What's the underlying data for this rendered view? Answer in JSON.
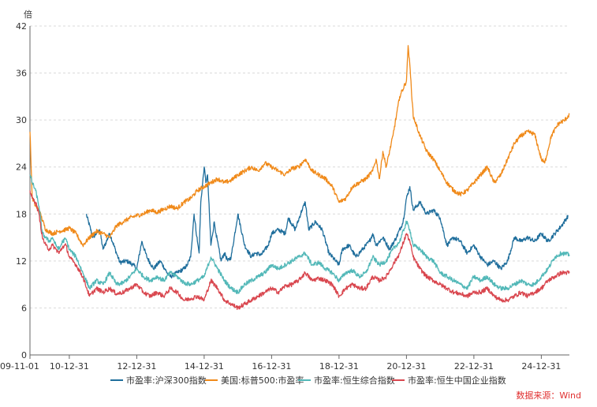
{
  "chart_data": {
    "type": "line",
    "unit_label": "倍",
    "source": "数据来源：Wind",
    "ylim": [
      0,
      42
    ],
    "yticks": [
      0,
      6,
      12,
      18,
      24,
      30,
      36,
      42
    ],
    "xlim": [
      2009.833,
      2025.833
    ],
    "xticks": [
      {
        "label": "09-11-01",
        "x": 2009.833
      },
      {
        "label": "10-12-31",
        "x": 2011.0
      },
      {
        "label": "12-12-31",
        "x": 2013.0
      },
      {
        "label": "14-12-31",
        "x": 2015.0
      },
      {
        "label": "16-12-31",
        "x": 2017.0
      },
      {
        "label": "18-12-31",
        "x": 2019.0
      },
      {
        "label": "20-12-31",
        "x": 2021.0
      },
      {
        "label": "22-12-31",
        "x": 2023.0
      },
      {
        "label": "24-12-31",
        "x": 2025.0
      }
    ],
    "grid": true,
    "series": [
      {
        "name": "市盈率:沪深300指数",
        "color": "#1f6e9c",
        "x": [
          2011.5,
          2011.7,
          2011.9,
          2012.0,
          2012.2,
          2012.4,
          2012.5,
          2012.7,
          2012.9,
          2013.0,
          2013.15,
          2013.3,
          2013.5,
          2013.7,
          2013.9,
          2014.0,
          2014.2,
          2014.4,
          2014.5,
          2014.6,
          2014.7,
          2014.8,
          2014.85,
          2014.9,
          2015.0,
          2015.05,
          2015.1,
          2015.2,
          2015.3,
          2015.35,
          2015.5,
          2015.6,
          2015.7,
          2015.8,
          2016.0,
          2016.2,
          2016.4,
          2016.5,
          2016.7,
          2016.9,
          2017.0,
          2017.2,
          2017.4,
          2017.5,
          2017.7,
          2017.9,
          2018.0,
          2018.1,
          2018.3,
          2018.5,
          2018.7,
          2018.9,
          2019.0,
          2019.1,
          2019.3,
          2019.5,
          2019.7,
          2019.9,
          2020.0,
          2020.1,
          2020.3,
          2020.5,
          2020.7,
          2020.9,
          2021.0,
          2021.1,
          2021.2,
          2021.4,
          2021.6,
          2021.8,
          2022.0,
          2022.2,
          2022.4,
          2022.6,
          2022.8,
          2023.0,
          2023.2,
          2023.4,
          2023.6,
          2023.8,
          2024.0,
          2024.2,
          2024.4,
          2024.6,
          2024.8,
          2025.0,
          2025.2,
          2025.4,
          2025.6,
          2025.8
        ],
        "y": [
          18.0,
          15.0,
          16.0,
          13.5,
          15.5,
          13.0,
          11.8,
          12.0,
          11.5,
          11.0,
          14.5,
          12.5,
          11.0,
          12.0,
          10.5,
          10.0,
          10.5,
          11.0,
          11.5,
          12.5,
          18.0,
          14.5,
          13.0,
          19.5,
          24.0,
          22.0,
          23.0,
          14.0,
          17.0,
          15.5,
          12.0,
          13.0,
          12.0,
          12.5,
          18.0,
          14.0,
          12.5,
          13.0,
          12.8,
          14.0,
          15.5,
          16.0,
          15.5,
          17.5,
          16.0,
          18.5,
          19.5,
          16.0,
          17.0,
          16.0,
          13.0,
          12.0,
          11.5,
          13.5,
          14.0,
          12.5,
          13.5,
          14.5,
          15.5,
          14.0,
          15.0,
          13.5,
          15.0,
          17.0,
          20.0,
          21.5,
          18.5,
          19.5,
          18.0,
          18.5,
          17.5,
          14.0,
          15.0,
          14.5,
          13.0,
          14.0,
          12.5,
          11.5,
          12.0,
          11.0,
          12.0,
          15.0,
          14.5,
          15.0,
          14.5,
          15.5,
          14.5,
          15.5,
          16.5,
          17.8
        ]
      },
      {
        "name": "美国:标普500:市盈率",
        "color": "#f08a1a",
        "x": [
          2009.833,
          2009.9,
          2010.0,
          2010.1,
          2010.3,
          2010.5,
          2010.7,
          2010.9,
          2011.0,
          2011.2,
          2011.4,
          2011.6,
          2011.8,
          2012.0,
          2012.2,
          2012.4,
          2012.6,
          2012.8,
          2013.0,
          2013.2,
          2013.4,
          2013.6,
          2013.8,
          2014.0,
          2014.2,
          2014.4,
          2014.6,
          2014.8,
          2015.0,
          2015.2,
          2015.4,
          2015.6,
          2015.8,
          2016.0,
          2016.2,
          2016.4,
          2016.6,
          2016.8,
          2017.0,
          2017.2,
          2017.4,
          2017.6,
          2017.8,
          2018.0,
          2018.2,
          2018.4,
          2018.6,
          2018.8,
          2019.0,
          2019.2,
          2019.4,
          2019.6,
          2019.8,
          2020.0,
          2020.1,
          2020.2,
          2020.3,
          2020.4,
          2020.6,
          2020.8,
          2021.0,
          2021.05,
          2021.1,
          2021.2,
          2021.4,
          2021.6,
          2021.8,
          2022.0,
          2022.2,
          2022.4,
          2022.6,
          2022.8,
          2023.0,
          2023.2,
          2023.4,
          2023.6,
          2023.8,
          2024.0,
          2024.2,
          2024.4,
          2024.6,
          2024.8,
          2025.0,
          2025.1,
          2025.3,
          2025.5,
          2025.7,
          2025.833
        ],
        "y": [
          28.5,
          20.0,
          19.0,
          18.5,
          16.0,
          15.5,
          15.8,
          16.0,
          16.2,
          15.5,
          14.0,
          15.0,
          15.8,
          15.5,
          15.0,
          16.5,
          17.0,
          17.5,
          17.8,
          18.0,
          18.5,
          18.2,
          18.6,
          19.0,
          18.7,
          19.5,
          20.0,
          21.0,
          21.5,
          22.0,
          22.5,
          22.0,
          22.3,
          23.0,
          23.5,
          24.0,
          23.5,
          24.5,
          24.0,
          23.5,
          23.0,
          23.8,
          24.0,
          25.0,
          23.5,
          23.0,
          22.5,
          21.5,
          19.5,
          20.0,
          21.5,
          22.0,
          22.5,
          23.5,
          25.0,
          22.5,
          26.0,
          24.0,
          28.0,
          33.0,
          35.0,
          39.5,
          37.0,
          30.5,
          28.0,
          26.0,
          25.0,
          23.5,
          22.0,
          21.0,
          20.5,
          21.0,
          22.0,
          23.0,
          24.0,
          22.0,
          23.0,
          25.0,
          27.0,
          28.0,
          28.5,
          28.2,
          25.0,
          24.5,
          28.0,
          29.5,
          30.0,
          30.7
        ]
      },
      {
        "name": "市盈率:恒生综合指数",
        "color": "#52b8b8",
        "x": [
          2009.833,
          2009.9,
          2010.0,
          2010.1,
          2010.2,
          2010.3,
          2010.4,
          2010.5,
          2010.6,
          2010.7,
          2010.8,
          2010.9,
          2011.0,
          2011.2,
          2011.4,
          2011.6,
          2011.8,
          2012.0,
          2012.2,
          2012.4,
          2012.6,
          2012.8,
          2013.0,
          2013.2,
          2013.4,
          2013.6,
          2013.8,
          2014.0,
          2014.2,
          2014.4,
          2014.6,
          2014.8,
          2015.0,
          2015.2,
          2015.4,
          2015.6,
          2015.8,
          2016.0,
          2016.2,
          2016.4,
          2016.6,
          2016.8,
          2017.0,
          2017.2,
          2017.4,
          2017.6,
          2017.8,
          2018.0,
          2018.2,
          2018.4,
          2018.6,
          2018.8,
          2019.0,
          2019.2,
          2019.4,
          2019.6,
          2019.8,
          2020.0,
          2020.2,
          2020.4,
          2020.6,
          2020.8,
          2021.0,
          2021.1,
          2021.2,
          2021.4,
          2021.6,
          2021.8,
          2022.0,
          2022.2,
          2022.4,
          2022.6,
          2022.8,
          2023.0,
          2023.2,
          2023.4,
          2023.6,
          2023.8,
          2024.0,
          2024.2,
          2024.4,
          2024.6,
          2024.8,
          2025.0,
          2025.2,
          2025.4,
          2025.6,
          2025.833
        ],
        "y": [
          23.0,
          22.0,
          21.0,
          19.0,
          15.5,
          15.0,
          14.5,
          15.0,
          14.0,
          13.5,
          14.5,
          14.8,
          13.5,
          12.5,
          10.5,
          8.5,
          9.5,
          9.0,
          10.5,
          9.0,
          9.2,
          10.0,
          11.0,
          10.0,
          9.5,
          10.0,
          9.5,
          10.5,
          10.0,
          9.2,
          9.0,
          9.5,
          10.0,
          12.5,
          11.0,
          9.5,
          8.5,
          8.0,
          9.0,
          9.5,
          10.0,
          10.5,
          11.5,
          11.0,
          11.5,
          12.0,
          12.5,
          13.0,
          11.5,
          11.8,
          11.0,
          10.5,
          9.5,
          10.5,
          10.8,
          10.0,
          10.5,
          12.5,
          11.5,
          12.0,
          13.5,
          14.5,
          17.0,
          16.0,
          14.0,
          13.5,
          12.5,
          12.0,
          10.5,
          10.0,
          9.5,
          9.0,
          8.5,
          10.0,
          9.5,
          10.0,
          9.0,
          8.5,
          8.5,
          9.0,
          9.5,
          9.0,
          9.0,
          10.0,
          11.0,
          12.5,
          13.0,
          12.8
        ]
      },
      {
        "name": "市盈率:恒生中国企业指数",
        "color": "#d9474f",
        "x": [
          2009.833,
          2009.9,
          2010.0,
          2010.1,
          2010.2,
          2010.3,
          2010.4,
          2010.5,
          2010.6,
          2010.7,
          2010.8,
          2010.9,
          2011.0,
          2011.2,
          2011.4,
          2011.6,
          2011.8,
          2012.0,
          2012.2,
          2012.4,
          2012.6,
          2012.8,
          2013.0,
          2013.2,
          2013.4,
          2013.6,
          2013.8,
          2014.0,
          2014.2,
          2014.4,
          2014.6,
          2014.8,
          2015.0,
          2015.2,
          2015.4,
          2015.6,
          2015.8,
          2016.0,
          2016.2,
          2016.4,
          2016.6,
          2016.8,
          2017.0,
          2017.2,
          2017.4,
          2017.6,
          2017.8,
          2018.0,
          2018.2,
          2018.4,
          2018.6,
          2018.8,
          2019.0,
          2019.2,
          2019.4,
          2019.6,
          2019.8,
          2020.0,
          2020.2,
          2020.4,
          2020.6,
          2020.8,
          2021.0,
          2021.1,
          2021.2,
          2021.4,
          2021.6,
          2021.8,
          2022.0,
          2022.2,
          2022.4,
          2022.6,
          2022.8,
          2023.0,
          2023.2,
          2023.4,
          2023.6,
          2023.8,
          2024.0,
          2024.2,
          2024.4,
          2024.6,
          2024.8,
          2025.0,
          2025.2,
          2025.4,
          2025.6,
          2025.833
        ],
        "y": [
          21.0,
          20.0,
          19.5,
          18.0,
          15.0,
          14.0,
          13.5,
          14.0,
          13.5,
          13.0,
          13.8,
          14.0,
          12.5,
          11.5,
          10.0,
          7.5,
          8.5,
          8.0,
          8.5,
          7.8,
          8.0,
          8.5,
          9.0,
          8.0,
          7.5,
          8.0,
          7.5,
          8.5,
          8.0,
          7.0,
          7.2,
          7.5,
          7.0,
          9.5,
          8.5,
          7.0,
          6.5,
          6.0,
          6.5,
          7.0,
          7.5,
          8.0,
          8.5,
          8.0,
          8.8,
          9.0,
          9.5,
          10.5,
          9.5,
          9.8,
          9.5,
          9.0,
          7.5,
          8.5,
          9.0,
          8.5,
          8.5,
          10.0,
          9.5,
          10.0,
          11.5,
          13.0,
          15.5,
          14.5,
          12.5,
          11.0,
          10.0,
          9.5,
          9.0,
          8.5,
          8.0,
          7.8,
          7.5,
          8.0,
          8.0,
          8.5,
          7.5,
          7.0,
          7.0,
          7.5,
          8.0,
          7.5,
          8.0,
          8.5,
          9.5,
          10.0,
          10.5,
          10.5
        ]
      }
    ]
  }
}
